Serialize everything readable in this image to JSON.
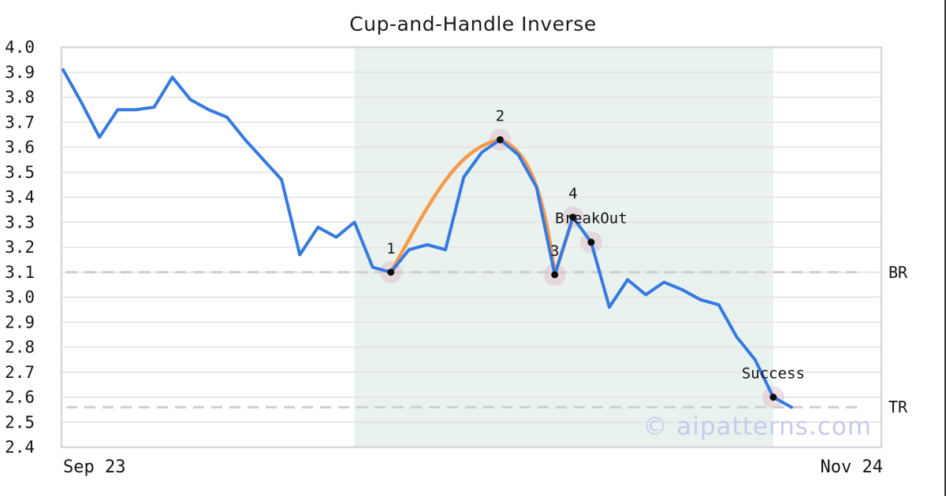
{
  "title": "Cup-and-Handle Inverse",
  "watermark": "© aipatterns.com",
  "colors": {
    "price_line": "#3579e2",
    "pattern_line": "#f79a48",
    "band": "#e9f2ee",
    "grid": "#e4e4e4",
    "spine": "#d7d7d7",
    "dashed_level": "#cdcdcd",
    "marker_dot": "#0d0d0d",
    "marker_halo": "rgba(225,195,207,0.55)",
    "text": "#141414",
    "watermark_color": "#c7caee"
  },
  "chart_data": {
    "type": "line",
    "title": "Cup-and-Handle Inverse",
    "xlabel": "",
    "ylabel": "",
    "grid": "horizontal",
    "legend": "none",
    "ylim": [
      2.4,
      4.0
    ],
    "y_tick_step": 0.1,
    "y_tick_labels": [
      "4.0",
      "3.9",
      "3.8",
      "3.7",
      "3.6",
      "3.5",
      "3.4",
      "3.3",
      "3.2",
      "3.1",
      "3.0",
      "2.9",
      "2.8",
      "2.7",
      "2.6",
      "2.5",
      "2.4"
    ],
    "x_tick_labels": [
      "Sep 23",
      "Nov 24"
    ],
    "series": [
      {
        "name": "price",
        "color": "#3579e2",
        "values": [
          3.91,
          3.78,
          3.64,
          3.75,
          3.75,
          3.76,
          3.88,
          3.79,
          3.75,
          3.72,
          3.63,
          3.55,
          3.47,
          3.17,
          3.28,
          3.24,
          3.3,
          3.12,
          3.1,
          3.19,
          3.21,
          3.19,
          3.48,
          3.58,
          3.63,
          3.57,
          3.44,
          3.09,
          3.32,
          3.22,
          2.96,
          3.07,
          3.01,
          3.06,
          3.03,
          2.99,
          2.97,
          2.84,
          2.75,
          2.6,
          2.56
        ]
      },
      {
        "name": "pattern-overlay",
        "color": "#f79a48",
        "shape": "inverse-cup-then-handle",
        "points": [
          {
            "i": 18,
            "v": 3.1
          },
          {
            "i": 24,
            "v": 3.63
          },
          {
            "i": 27,
            "v": 3.09
          },
          {
            "i": 28,
            "v": 3.32
          }
        ]
      }
    ],
    "levels": [
      {
        "label": "BR",
        "value": 3.1
      },
      {
        "label": "TR",
        "value": 2.56
      }
    ],
    "shaded_region": {
      "start_index": 16,
      "end_index": 39
    },
    "annotations": [
      {
        "label": "1",
        "index": 18,
        "value": 3.1
      },
      {
        "label": "2",
        "index": 24,
        "value": 3.63
      },
      {
        "label": "3",
        "index": 27,
        "value": 3.09
      },
      {
        "label": "4",
        "index": 28,
        "value": 3.32
      },
      {
        "label": "BreakOut",
        "index": 29,
        "value": 3.22
      },
      {
        "label": "Success",
        "index": 39,
        "value": 2.6
      }
    ]
  }
}
